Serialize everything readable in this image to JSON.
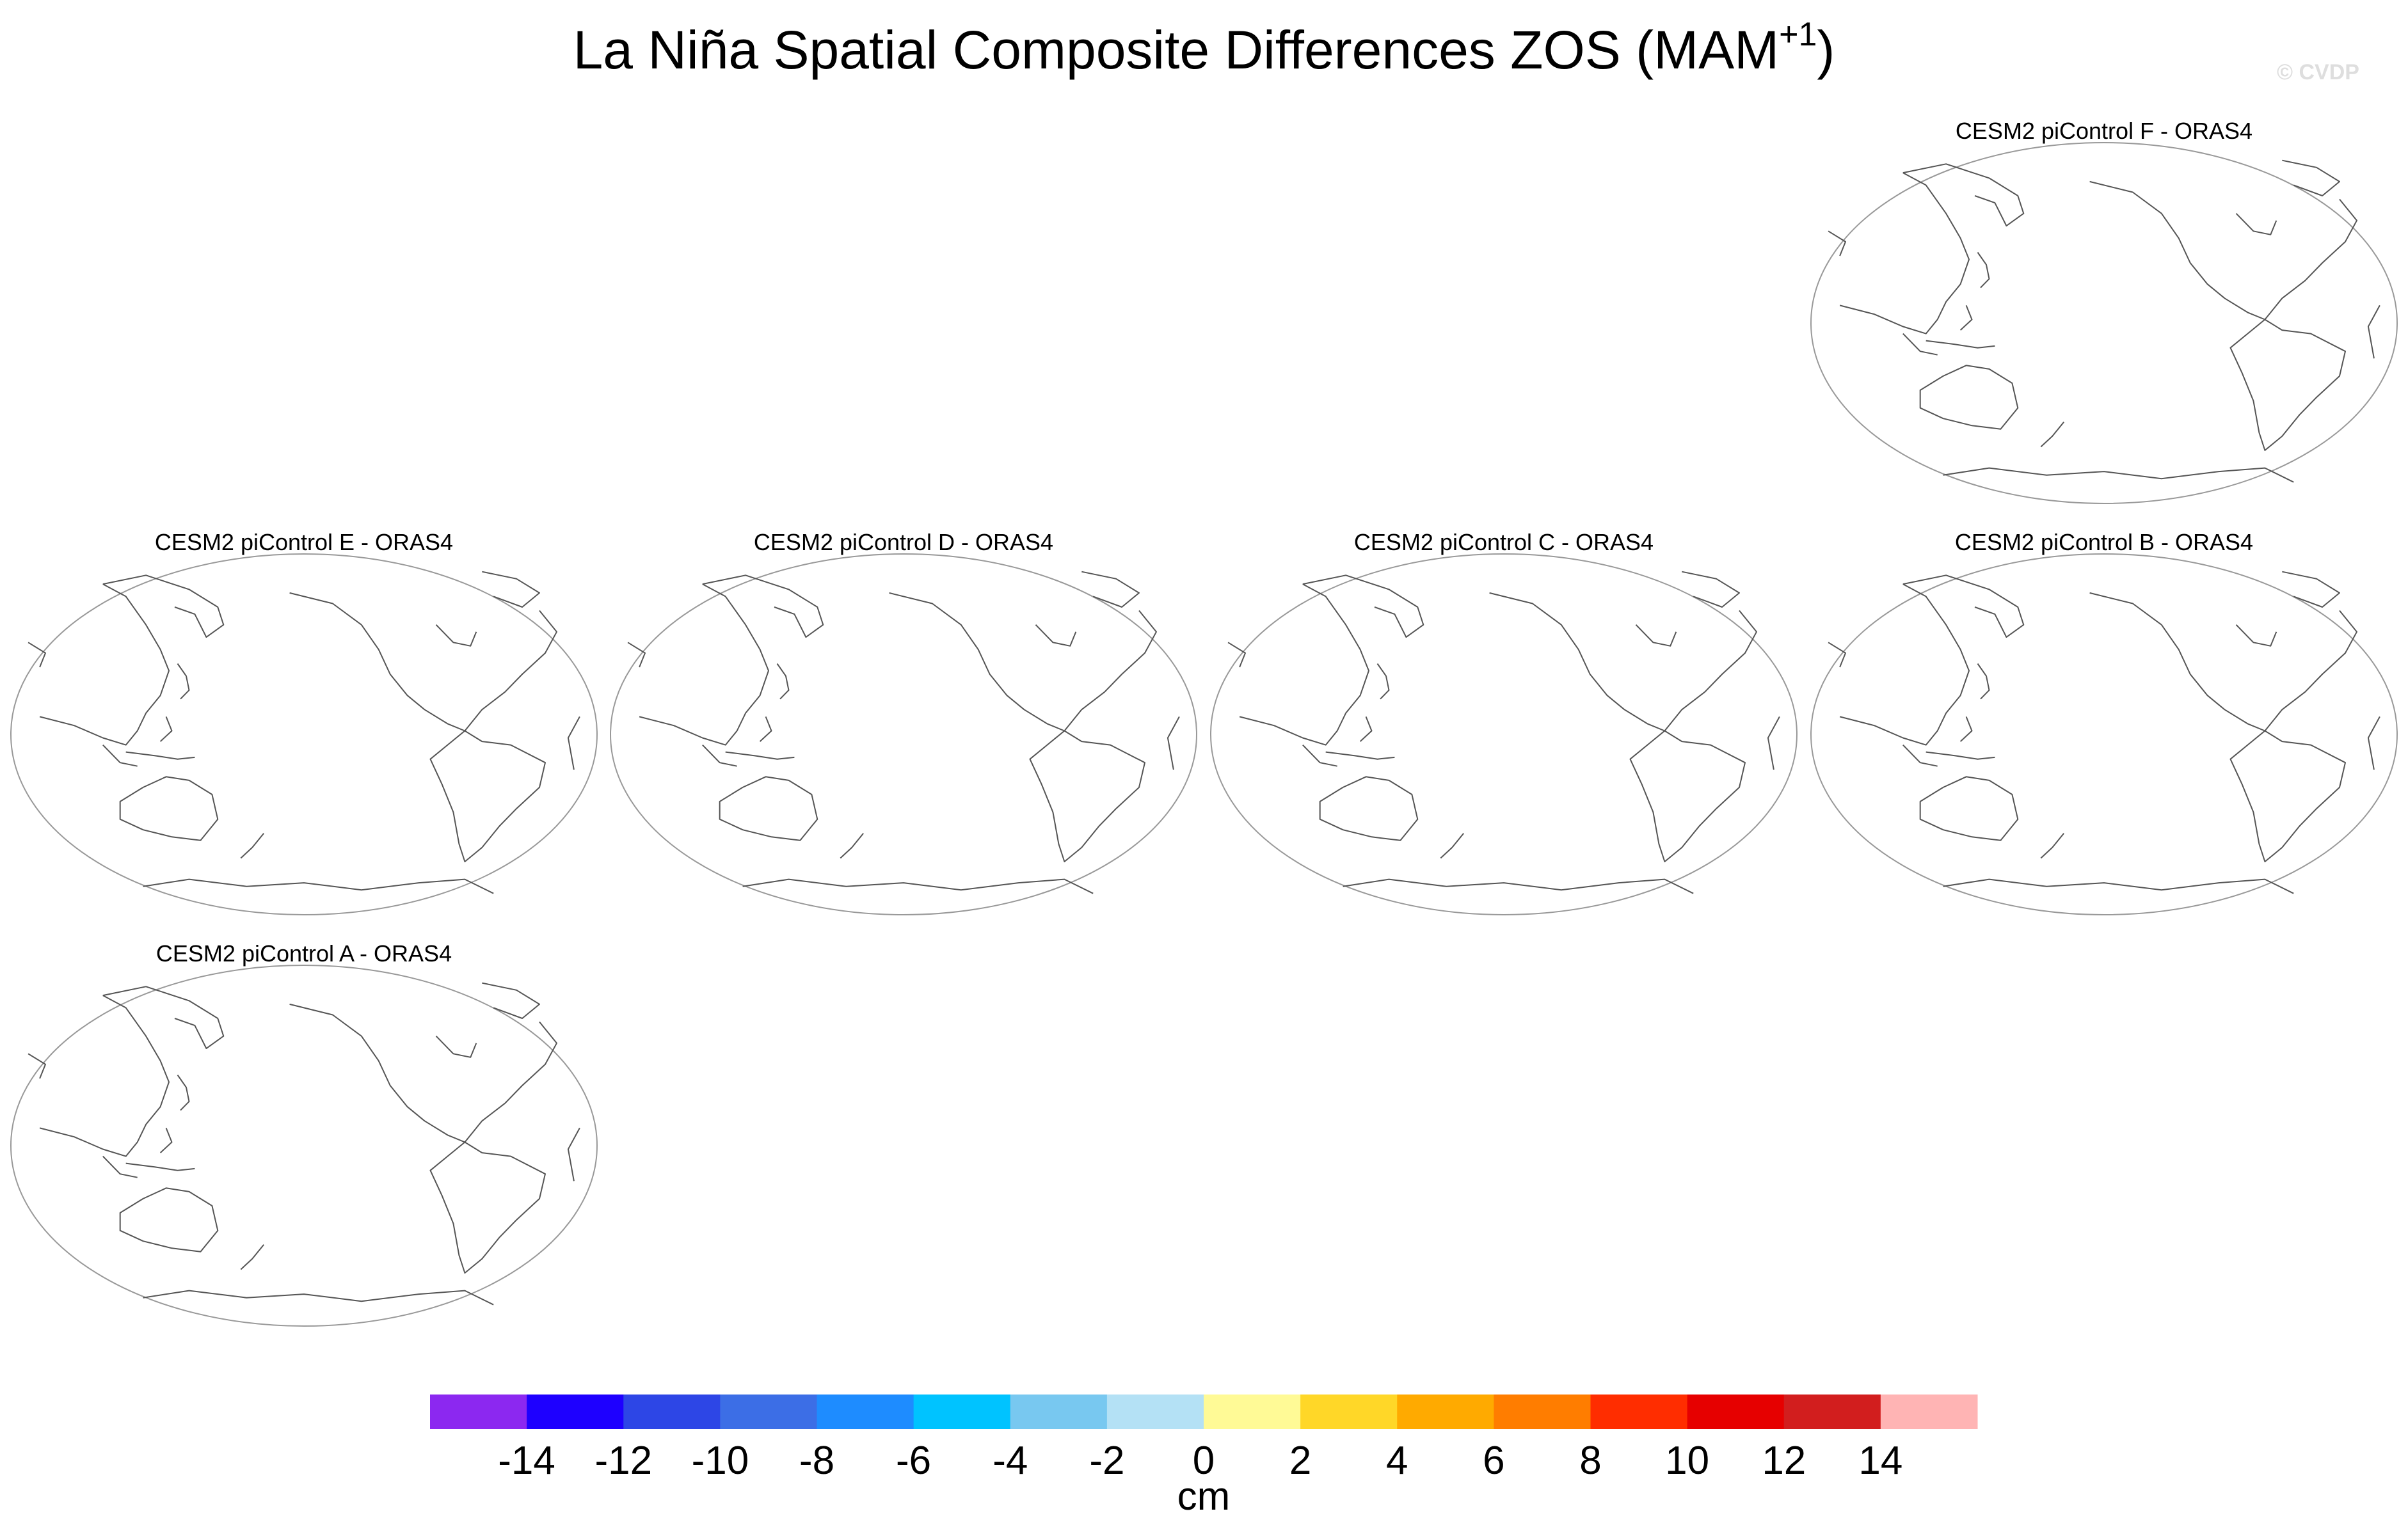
{
  "figure": {
    "title_main": "La Niña Spatial Composite Differences ZOS (MAM",
    "title_sup": "+1",
    "title_end": ")",
    "copyright": "© CVDP"
  },
  "panels": [
    {
      "id": "F",
      "title": "CESM2 piControl F - ORAS4",
      "row": 0,
      "col": 3
    },
    {
      "id": "E",
      "title": "CESM2 piControl E - ORAS4",
      "row": 1,
      "col": 0
    },
    {
      "id": "D",
      "title": "CESM2 piControl D - ORAS4",
      "row": 1,
      "col": 1
    },
    {
      "id": "C",
      "title": "CESM2 piControl C - ORAS4",
      "row": 1,
      "col": 2
    },
    {
      "id": "B",
      "title": "CESM2 piControl B - ORAS4",
      "row": 1,
      "col": 3
    },
    {
      "id": "A",
      "title": "CESM2 piControl A - ORAS4",
      "row": 2,
      "col": 0
    }
  ],
  "map": {
    "projection": "robinson-like ellipse",
    "center_longitude": "Pacific-centered",
    "outline_color": "#999999",
    "coastline_color": "#555555"
  },
  "colorbar": {
    "units": "cm",
    "colors": [
      "#8c28f0",
      "#1e00ff",
      "#2d46e6",
      "#3c6ee6",
      "#1e8cff",
      "#00c3ff",
      "#78c8f0",
      "#b4e1f5",
      "#fffa96",
      "#ffd728",
      "#ffaa00",
      "#ff7d00",
      "#ff2d00",
      "#e60000",
      "#d21e1e",
      "#ffb4b4"
    ],
    "tick_labels": [
      "-14",
      "-12",
      "-10",
      "-8",
      "-6",
      "-4",
      "-2",
      "0",
      "2",
      "4",
      "6",
      "8",
      "10",
      "12",
      "14"
    ]
  }
}
